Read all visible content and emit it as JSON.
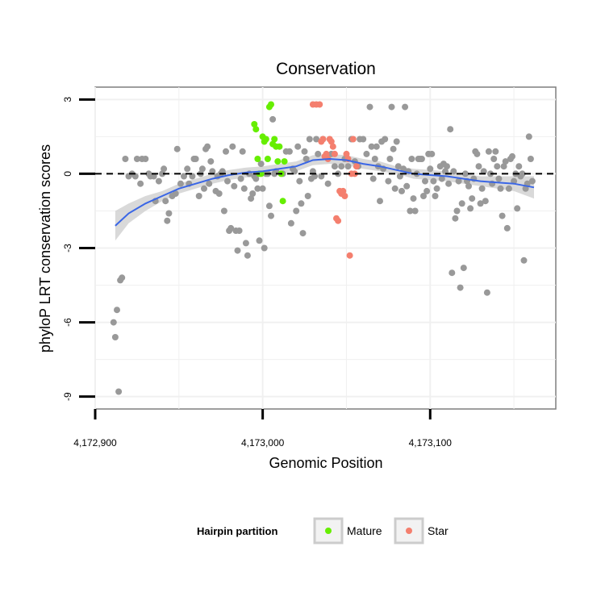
{
  "chart_data": {
    "type": "scatter",
    "title": "Conservation",
    "xlabel": "Genomic Position",
    "ylabel": "phyloP LRT conservation scores",
    "xlim": [
      4172900,
      4173175
    ],
    "ylim": [
      -9.5,
      3.5
    ],
    "x_ticks": [
      4172900,
      4173000,
      4173100
    ],
    "x_tick_labels": [
      "4,172,900",
      "4,173,000",
      "4,173,100"
    ],
    "y_ticks": [
      -9,
      -6,
      -3,
      0,
      3
    ],
    "y_tick_labels": [
      "-9",
      "-6",
      "-3",
      "0",
      "3"
    ],
    "reference_line_y": 0,
    "grid": true,
    "legend": {
      "title": "Hairpin partition",
      "placement": "bottom",
      "entries": [
        {
          "label": "Mature",
          "color": "#66ee00"
        },
        {
          "label": "Star",
          "color": "#f47f6e"
        }
      ]
    },
    "colors": {
      "other": "#999999",
      "Mature": "#66ee00",
      "Star": "#f47f6e",
      "smooth": "#3a66e6",
      "band": "#cccccc"
    },
    "series": [
      {
        "group": "other",
        "points": [
          [
            4172911,
            -6.0
          ],
          [
            4172912,
            -6.6
          ],
          [
            4172913,
            -5.5
          ],
          [
            4172914,
            -8.8
          ],
          [
            4172915,
            -4.3
          ],
          [
            4172916,
            -4.2
          ],
          [
            4172918,
            0.6
          ],
          [
            4172920,
            -0.1
          ],
          [
            4172922,
            0.0
          ],
          [
            4172924,
            -0.1
          ],
          [
            4172925,
            0.6
          ],
          [
            4172927,
            -0.4
          ],
          [
            4172928,
            0.6
          ],
          [
            4172930,
            0.6
          ],
          [
            4172932,
            0.0
          ],
          [
            4172933,
            -0.1
          ],
          [
            4172935,
            -0.1
          ],
          [
            4172936,
            -1.1
          ],
          [
            4172938,
            -0.3
          ],
          [
            4172940,
            0.0
          ],
          [
            4172941,
            0.2
          ],
          [
            4172942,
            -1.1
          ],
          [
            4172943,
            -1.9
          ],
          [
            4172944,
            -1.6
          ],
          [
            4172946,
            -0.9
          ],
          [
            4172948,
            -0.8
          ],
          [
            4172949,
            1.0
          ],
          [
            4172951,
            -0.4
          ],
          [
            4172953,
            -0.1
          ],
          [
            4172955,
            0.2
          ],
          [
            4172956,
            -0.4
          ],
          [
            4172958,
            -0.1
          ],
          [
            4172959,
            0.6
          ],
          [
            4172960,
            0.6
          ],
          [
            4172962,
            -0.9
          ],
          [
            4172963,
            0.0
          ],
          [
            4172964,
            0.2
          ],
          [
            4172965,
            -0.6
          ],
          [
            4172966,
            1.0
          ],
          [
            4172967,
            1.1
          ],
          [
            4172968,
            -0.4
          ],
          [
            4172969,
            0.5
          ],
          [
            4172970,
            0.1
          ],
          [
            4172972,
            -0.7
          ],
          [
            4172973,
            -0.1
          ],
          [
            4172974,
            -0.8
          ],
          [
            4172975,
            0.0
          ],
          [
            4172976,
            0.1
          ],
          [
            4172977,
            -1.5
          ],
          [
            4172978,
            0.9
          ],
          [
            4172979,
            -0.3
          ],
          [
            4172980,
            -2.3
          ],
          [
            4172981,
            -2.2
          ],
          [
            4172982,
            1.1
          ],
          [
            4172983,
            -0.5
          ],
          [
            4172984,
            -2.3
          ],
          [
            4172985,
            -3.1
          ],
          [
            4172986,
            -2.3
          ],
          [
            4172987,
            -0.2
          ],
          [
            4172988,
            0.9
          ],
          [
            4172989,
            -0.6
          ],
          [
            4172990,
            -2.8
          ],
          [
            4172991,
            -3.3
          ],
          [
            4172992,
            0.0
          ],
          [
            4172993,
            -1.0
          ],
          [
            4172994,
            -0.8
          ],
          [
            4172995,
            -0.1
          ],
          [
            4172996,
            -0.2
          ],
          [
            4172997,
            -0.6
          ],
          [
            4172998,
            -2.7
          ],
          [
            4172999,
            0.4
          ],
          [
            4173000,
            -0.6
          ],
          [
            4173001,
            -3.0
          ],
          [
            4173002,
            0.0
          ],
          [
            4173003,
            0.0
          ],
          [
            4173004,
            -1.3
          ],
          [
            4173005,
            -1.7
          ],
          [
            4173006,
            2.2
          ],
          [
            4173007,
            0.0
          ],
          [
            4173008,
            0.1
          ],
          [
            4173012,
            0.0
          ],
          [
            4173014,
            0.9
          ],
          [
            4173016,
            0.9
          ],
          [
            4173017,
            -2.0
          ],
          [
            4173018,
            0.2
          ],
          [
            4173019,
            0.1
          ],
          [
            4173020,
            -1.5
          ],
          [
            4173021,
            1.1
          ],
          [
            4173022,
            -0.3
          ],
          [
            4173023,
            -1.2
          ],
          [
            4173024,
            -2.4
          ],
          [
            4173025,
            0.9
          ],
          [
            4173026,
            0.6
          ],
          [
            4173027,
            -0.9
          ],
          [
            4173028,
            1.4
          ],
          [
            4173029,
            -0.2
          ],
          [
            4173030,
            0.1
          ],
          [
            4173031,
            -0.1
          ],
          [
            4173032,
            1.4
          ],
          [
            4173033,
            0.8
          ],
          [
            4173035,
            -0.1
          ],
          [
            4173036,
            1.4
          ],
          [
            4173038,
            0.7
          ],
          [
            4173039,
            -0.4
          ],
          [
            4173041,
            0.8
          ],
          [
            4173043,
            0.3
          ],
          [
            4173045,
            0.0
          ],
          [
            4173047,
            0.3
          ],
          [
            4173049,
            0.6
          ],
          [
            4173051,
            0.3
          ],
          [
            4173053,
            1.4
          ],
          [
            4173055,
            0.5
          ],
          [
            4173057,
            0.3
          ],
          [
            4173058,
            1.4
          ],
          [
            4173060,
            1.4
          ],
          [
            4173062,
            0.8
          ],
          [
            4173064,
            2.7
          ],
          [
            4173065,
            1.1
          ],
          [
            4173066,
            -0.2
          ],
          [
            4173067,
            0.6
          ],
          [
            4173068,
            1.1
          ],
          [
            4173069,
            0.3
          ],
          [
            4173070,
            -1.1
          ],
          [
            4173071,
            1.3
          ],
          [
            4173072,
            0.2
          ],
          [
            4173073,
            1.4
          ],
          [
            4173075,
            -0.3
          ],
          [
            4173076,
            0.6
          ],
          [
            4173077,
            2.7
          ],
          [
            4173078,
            1.0
          ],
          [
            4173079,
            -0.6
          ],
          [
            4173080,
            1.3
          ],
          [
            4173081,
            0.3
          ],
          [
            4173082,
            -0.1
          ],
          [
            4173083,
            -0.7
          ],
          [
            4173084,
            0.2
          ],
          [
            4173085,
            2.7
          ],
          [
            4173086,
            -0.5
          ],
          [
            4173087,
            0.1
          ],
          [
            4173088,
            -1.5
          ],
          [
            4173089,
            0.6
          ],
          [
            4173090,
            -1.0
          ],
          [
            4173091,
            -1.5
          ],
          [
            4173092,
            0.0
          ],
          [
            4173093,
            0.6
          ],
          [
            4173094,
            0.6
          ],
          [
            4173095,
            0.6
          ],
          [
            4173096,
            -0.9
          ],
          [
            4173097,
            -0.3
          ],
          [
            4173098,
            -0.7
          ],
          [
            4173099,
            0.8
          ],
          [
            4173100,
            0.2
          ],
          [
            4173101,
            0.8
          ],
          [
            4173102,
            -0.3
          ],
          [
            4173103,
            -0.9
          ],
          [
            4173104,
            -0.6
          ],
          [
            4173106,
            0.3
          ],
          [
            4173107,
            -0.2
          ],
          [
            4173108,
            0.4
          ],
          [
            4173109,
            0.1
          ],
          [
            4173110,
            0.3
          ],
          [
            4173111,
            -0.4
          ],
          [
            4173112,
            1.8
          ],
          [
            4173113,
            -4.0
          ],
          [
            4173114,
            0.1
          ],
          [
            4173115,
            -1.8
          ],
          [
            4173116,
            -1.5
          ],
          [
            4173117,
            -0.3
          ],
          [
            4173118,
            -4.6
          ],
          [
            4173119,
            -1.2
          ],
          [
            4173120,
            -3.8
          ],
          [
            4173121,
            0.0
          ],
          [
            4173122,
            -0.3
          ],
          [
            4173123,
            -0.5
          ],
          [
            4173124,
            -1.4
          ],
          [
            4173125,
            -1.0
          ],
          [
            4173126,
            -0.2
          ],
          [
            4173127,
            0.9
          ],
          [
            4173128,
            0.8
          ],
          [
            4173129,
            0.3
          ],
          [
            4173130,
            -1.2
          ],
          [
            4173131,
            -0.6
          ],
          [
            4173132,
            0.1
          ],
          [
            4173133,
            -1.1
          ],
          [
            4173134,
            -4.8
          ],
          [
            4173135,
            0.9
          ],
          [
            4173136,
            0.0
          ],
          [
            4173137,
            -0.4
          ],
          [
            4173138,
            0.6
          ],
          [
            4173139,
            0.9
          ],
          [
            4173140,
            0.3
          ],
          [
            4173141,
            -0.2
          ],
          [
            4173142,
            -0.6
          ],
          [
            4173143,
            -1.7
          ],
          [
            4173144,
            0.3
          ],
          [
            4173145,
            0.5
          ],
          [
            4173146,
            -2.2
          ],
          [
            4173147,
            -0.6
          ],
          [
            4173148,
            0.6
          ],
          [
            4173149,
            0.7
          ],
          [
            4173150,
            -0.3
          ],
          [
            4173151,
            0.0
          ],
          [
            4173152,
            -1.4
          ],
          [
            4173153,
            0.3
          ],
          [
            4173154,
            -0.1
          ],
          [
            4173155,
            0.0
          ],
          [
            4173156,
            -3.5
          ],
          [
            4173157,
            -0.6
          ],
          [
            4173158,
            -0.4
          ],
          [
            4173159,
            1.5
          ],
          [
            4173160,
            0.6
          ],
          [
            4173161,
            -0.3
          ]
        ]
      },
      {
        "group": "Mature",
        "points": [
          [
            4172995,
            2.0
          ],
          [
            4172996,
            1.8
          ],
          [
            4172997,
            0.6
          ],
          [
            4172998,
            0.0
          ],
          [
            4172999,
            0.0
          ],
          [
            4173000,
            1.5
          ],
          [
            4173001,
            1.3
          ],
          [
            4173002,
            1.4
          ],
          [
            4173003,
            0.6
          ],
          [
            4173004,
            2.7
          ],
          [
            4173005,
            2.8
          ],
          [
            4173006,
            1.2
          ],
          [
            4173007,
            1.4
          ],
          [
            4173008,
            1.1
          ],
          [
            4173009,
            0.5
          ],
          [
            4173010,
            1.1
          ],
          [
            4173011,
            0.0
          ],
          [
            4173012,
            -1.1
          ],
          [
            4173013,
            0.5
          ]
        ]
      },
      {
        "group": "Star",
        "points": [
          [
            4173030,
            2.8
          ],
          [
            4173032,
            2.8
          ],
          [
            4173034,
            2.8
          ],
          [
            4173035,
            1.3
          ],
          [
            4173036,
            1.4
          ],
          [
            4173037,
            0.7
          ],
          [
            4173038,
            0.8
          ],
          [
            4173039,
            0.6
          ],
          [
            4173040,
            1.4
          ],
          [
            4173041,
            1.3
          ],
          [
            4173042,
            1.1
          ],
          [
            4173043,
            0.8
          ],
          [
            4173044,
            -1.8
          ],
          [
            4173045,
            -1.9
          ],
          [
            4173046,
            -0.7
          ],
          [
            4173047,
            -0.8
          ],
          [
            4173048,
            -0.7
          ],
          [
            4173049,
            -0.9
          ],
          [
            4173050,
            0.8
          ],
          [
            4173051,
            0.6
          ],
          [
            4173052,
            -3.3
          ],
          [
            4173053,
            0.0
          ],
          [
            4173054,
            1.4
          ],
          [
            4173055,
            0.0
          ],
          [
            4173056,
            0.3
          ]
        ]
      }
    ],
    "smooth": {
      "x": [
        4172912,
        4172920,
        4172930,
        4172940,
        4172950,
        4172960,
        4172970,
        4172980,
        4172990,
        4173000,
        4173010,
        4173020,
        4173030,
        4173040,
        4173050,
        4173060,
        4173070,
        4173080,
        4173090,
        4173100,
        4173110,
        4173120,
        4173130,
        4173140,
        4173150,
        4173162
      ],
      "y": [
        -2.1,
        -1.6,
        -1.2,
        -0.9,
        -0.6,
        -0.4,
        -0.2,
        -0.05,
        0.05,
        0.1,
        0.2,
        0.3,
        0.55,
        0.6,
        0.55,
        0.4,
        0.3,
        0.15,
        0.0,
        -0.05,
        -0.1,
        -0.2,
        -0.3,
        -0.35,
        -0.4,
        -0.55
      ],
      "lower": [
        -2.7,
        -2.0,
        -1.5,
        -1.1,
        -0.8,
        -0.6,
        -0.4,
        -0.25,
        -0.15,
        -0.1,
        0.0,
        0.1,
        0.35,
        0.4,
        0.35,
        0.2,
        0.1,
        0.0,
        -0.2,
        -0.25,
        -0.3,
        -0.4,
        -0.5,
        -0.6,
        -0.7,
        -1.0
      ],
      "upper": [
        -1.5,
        -1.2,
        -0.9,
        -0.7,
        -0.4,
        -0.2,
        0.0,
        0.15,
        0.25,
        0.3,
        0.4,
        0.5,
        0.75,
        0.8,
        0.75,
        0.6,
        0.5,
        0.3,
        0.2,
        0.15,
        0.1,
        0.0,
        -0.1,
        -0.1,
        -0.1,
        -0.1
      ]
    }
  }
}
